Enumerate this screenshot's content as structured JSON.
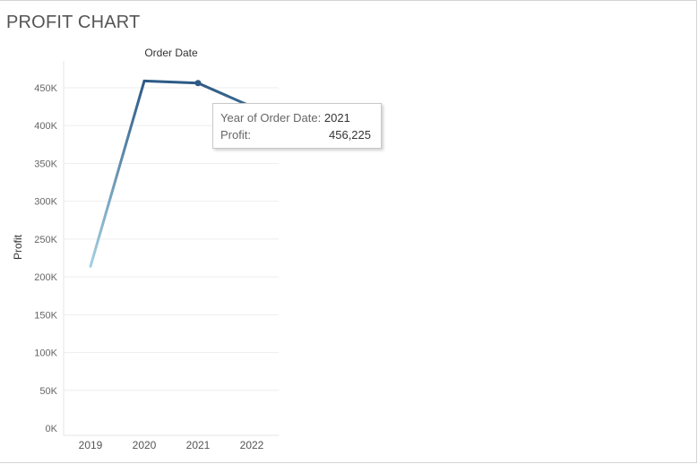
{
  "title": "PROFIT CHART",
  "chart_data": {
    "type": "line",
    "title": "PROFIT CHART",
    "column_header": "Order Date",
    "ylabel": "Profit",
    "xlabel": "",
    "categories": [
      "2019",
      "2020",
      "2021",
      "2022"
    ],
    "series": [
      {
        "values": [
          214000,
          459000,
          456225,
          425000
        ]
      }
    ],
    "ylim": [
      0,
      450000
    ],
    "yticks": [
      0,
      50000,
      100000,
      150000,
      200000,
      250000,
      300000,
      350000,
      400000,
      450000
    ],
    "ytick_labels": [
      "0K",
      "50K",
      "100K",
      "150K",
      "200K",
      "250K",
      "300K",
      "350K",
      "400K",
      "450K"
    ],
    "grid": true,
    "line_color_start": "#a9d3e4",
    "line_color_end": "#2c5985",
    "highlighted_point": "2021"
  },
  "tooltip": {
    "label1": "Year of Order Date:",
    "value1": "2021",
    "label2": "Profit:",
    "value2": "456,225"
  }
}
